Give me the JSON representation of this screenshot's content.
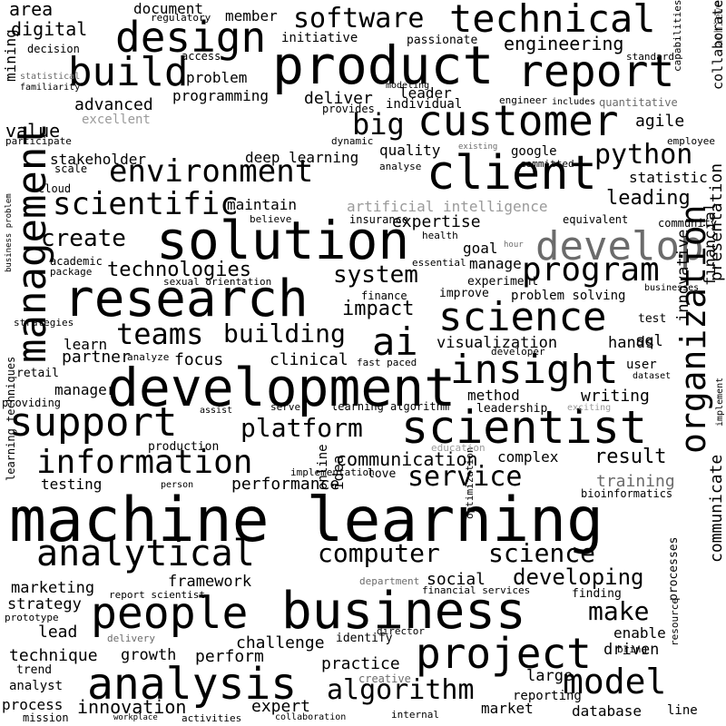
{
  "words": [
    "area",
    "document",
    "regulatory",
    "member",
    "software",
    "technical",
    "capabilities",
    "achieve",
    "digital",
    "decision",
    "initiative",
    "passionate",
    "design",
    "engineering",
    "collaborate",
    "access",
    "product",
    "report",
    "standard",
    "build",
    "problem",
    "modeling",
    "engineer",
    "includes",
    "programming",
    "leader",
    "deliver",
    "provides",
    "individual",
    "advanced",
    "mining",
    "value",
    "customer",
    "big",
    "agile",
    "participate",
    "dynamic",
    "employee",
    "client",
    "environment",
    "stakeholder",
    "deep learning",
    "quality",
    "google",
    "python",
    "scale",
    "cloud",
    "analyse",
    "committed",
    "statistic",
    "scientific",
    "maintain",
    "leading",
    "artificial intelligence",
    "believe",
    "insurance",
    "expertise",
    "equivalent",
    "community",
    "solution",
    "develop",
    "health",
    "create",
    "goal",
    "manage",
    "academic",
    "essential",
    "program",
    "technologies",
    "package",
    "system",
    "experiment",
    "research",
    "sexual orientation",
    "finance",
    "improve",
    "problem solving",
    "businesses",
    "management",
    "impact",
    "science",
    "presentation",
    "test",
    "strategies",
    "teams",
    "building",
    "ai",
    "visualization",
    "hands",
    "sql",
    "financial",
    "learn",
    "developer",
    "partner",
    "retail",
    "analyze",
    "focus",
    "clinical",
    "fast paced",
    "insight",
    "innovative",
    "user",
    "dataset",
    "development",
    "manager",
    "method",
    "writing",
    "leadership",
    "providing",
    "assist",
    "serve",
    "learning algorithm",
    "support",
    "scientist",
    "organization",
    "platform",
    "production",
    "information",
    "result",
    "communication",
    "complex",
    "training",
    "testing",
    "implementation",
    "love",
    "service",
    "bioinformatics",
    "performance",
    "machine learning",
    "learning techniques",
    "person",
    "online",
    "idea",
    "analytical",
    "computer",
    "science",
    "optimization",
    "marketing",
    "developing",
    "framework",
    "social",
    "communicate",
    "report scientist",
    "financial services",
    "finding",
    "strategy",
    "make",
    "people",
    "business",
    "prototype",
    "processes",
    "lead",
    "bring",
    "enable",
    "challenge",
    "identify",
    "director",
    "delivery",
    "technique",
    "growth",
    "perform",
    "project",
    "driven",
    "resource",
    "practice",
    "trend",
    "analysis",
    "large",
    "creative",
    "model",
    "analyst",
    "algorithm",
    "reporting",
    "process",
    "innovation",
    "expert",
    "market",
    "database",
    "line",
    "mission",
    "workplace",
    "activities",
    "collaboration",
    "internal",
    "statistical",
    "familiarity",
    "quantitative",
    "existing",
    "hour",
    "department",
    "excellent",
    "education",
    "exciting",
    "implement",
    "business problem"
  ]
}
